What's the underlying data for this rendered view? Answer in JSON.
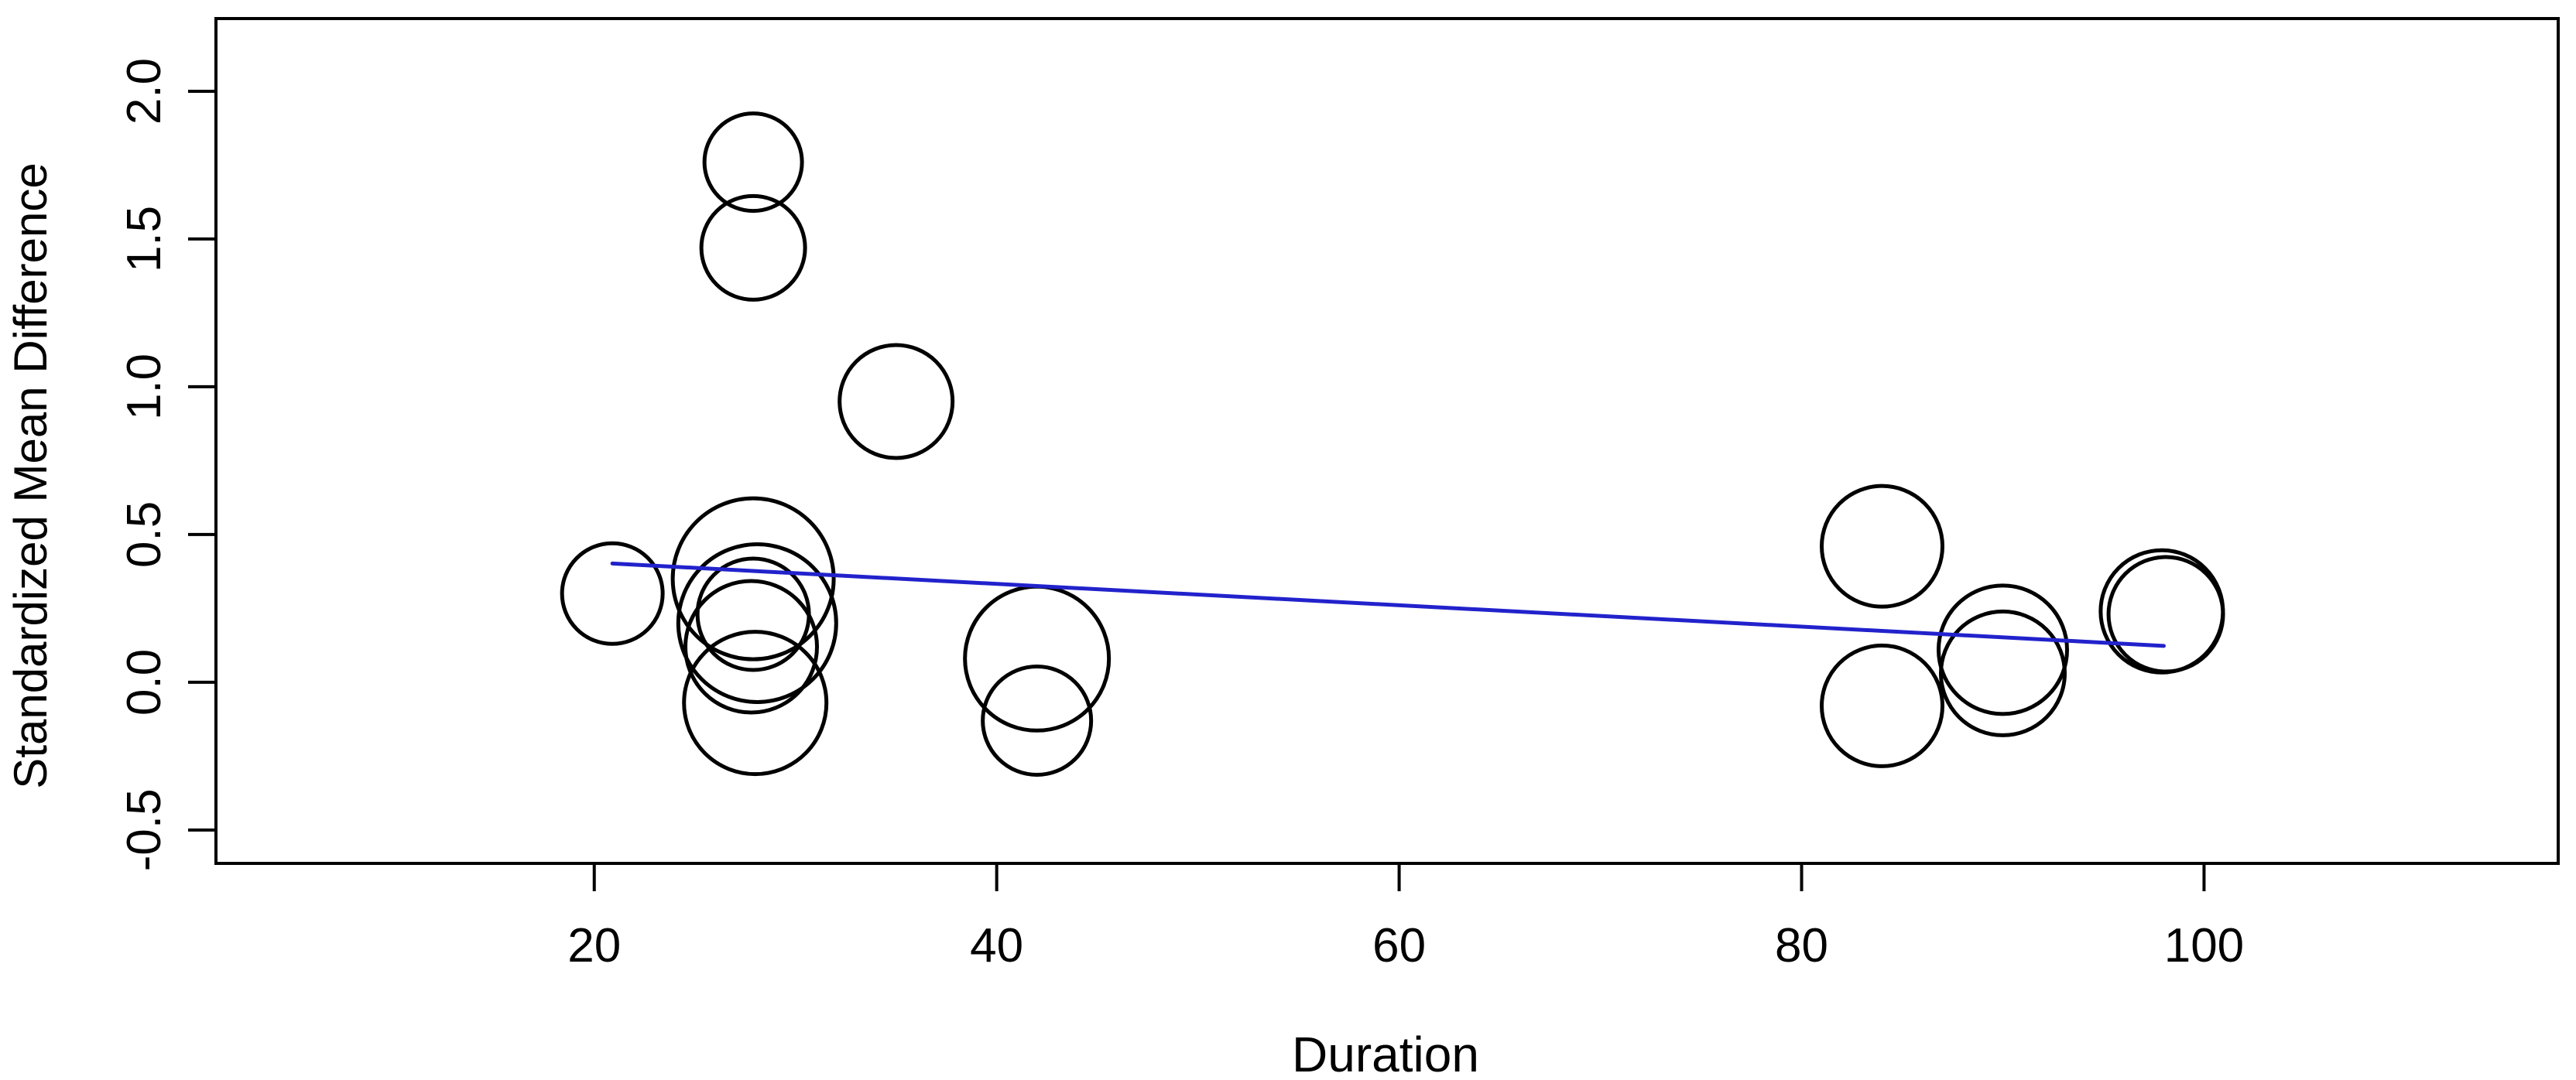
{
  "chart_data": {
    "type": "scatter",
    "subtype": "meta-regression-bubble-plot",
    "title": "",
    "xlabel": "Duration",
    "ylabel": "Standardized Mean Difference",
    "xlim": [
      1.2,
      117.6
    ],
    "ylim": [
      -0.613,
      2.246
    ],
    "grid": false,
    "legend": "none",
    "xticks": {
      "values": [
        20,
        40,
        60,
        80,
        100
      ],
      "labels": [
        "20",
        "40",
        "60",
        "80",
        "100"
      ]
    },
    "yticks": {
      "values": [
        -0.5,
        0.0,
        0.5,
        1.0,
        1.5,
        2.0
      ],
      "labels": [
        "-0.5",
        "0.0",
        "0.5",
        "1.0",
        "1.5",
        "2.0"
      ]
    },
    "points": [
      {
        "x": 20.9,
        "y": 0.3,
        "r": 65
      },
      {
        "x": 27.9,
        "y": 1.76,
        "r": 63
      },
      {
        "x": 27.9,
        "y": 1.47,
        "r": 67
      },
      {
        "x": 35.0,
        "y": 0.95,
        "r": 73
      },
      {
        "x": 27.9,
        "y": 0.35,
        "r": 104
      },
      {
        "x": 28.1,
        "y": 0.2,
        "r": 102
      },
      {
        "x": 27.9,
        "y": 0.23,
        "r": 72
      },
      {
        "x": 27.8,
        "y": 0.12,
        "r": 85
      },
      {
        "x": 28.0,
        "y": -0.07,
        "r": 92
      },
      {
        "x": 42.0,
        "y": 0.08,
        "r": 93
      },
      {
        "x": 42.0,
        "y": -0.13,
        "r": 70
      },
      {
        "x": 84.0,
        "y": 0.46,
        "r": 78
      },
      {
        "x": 84.0,
        "y": -0.08,
        "r": 78
      },
      {
        "x": 90.0,
        "y": 0.11,
        "r": 83
      },
      {
        "x": 90.0,
        "y": 0.03,
        "r": 80
      },
      {
        "x": 97.9,
        "y": 0.24,
        "r": 79
      },
      {
        "x": 98.1,
        "y": 0.23,
        "r": 74
      }
    ],
    "regression_line": {
      "x1": 20.9,
      "y1": 0.402,
      "x2": 98.0,
      "y2": 0.123
    },
    "colors": {
      "bubble_stroke": "#000000",
      "regression_line": "#2222CC",
      "axis": "#000000",
      "background": "#FFFFFF"
    }
  }
}
